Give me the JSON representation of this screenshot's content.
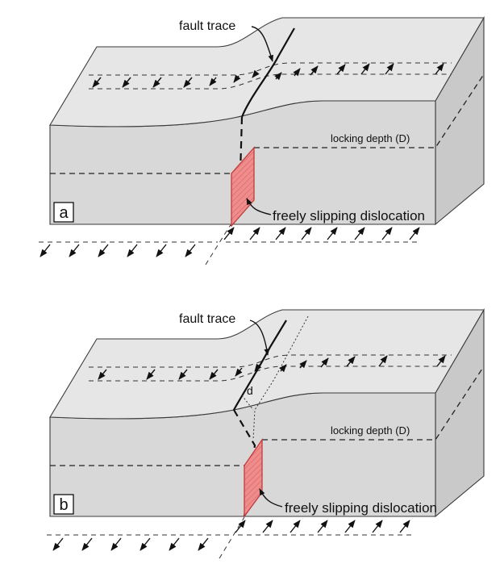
{
  "panels": [
    {
      "panel_label": "a",
      "fault_trace_label": "fault trace",
      "locking_depth_label": "locking depth (D)",
      "dislocation_label": "freely slipping dislocation"
    },
    {
      "panel_label": "b",
      "fault_trace_label": "fault trace",
      "locking_depth_label": "locking depth (D)",
      "dislocation_label": "freely slipping dislocation",
      "offset_label": "d"
    }
  ],
  "colors": {
    "block_top": "#e6e6e6",
    "block_front": "#d8d8d8",
    "block_side": "#c9c9c9",
    "dislocation_fill": "#ee8a8a",
    "dislocation_stroke": "#c23b3b"
  }
}
